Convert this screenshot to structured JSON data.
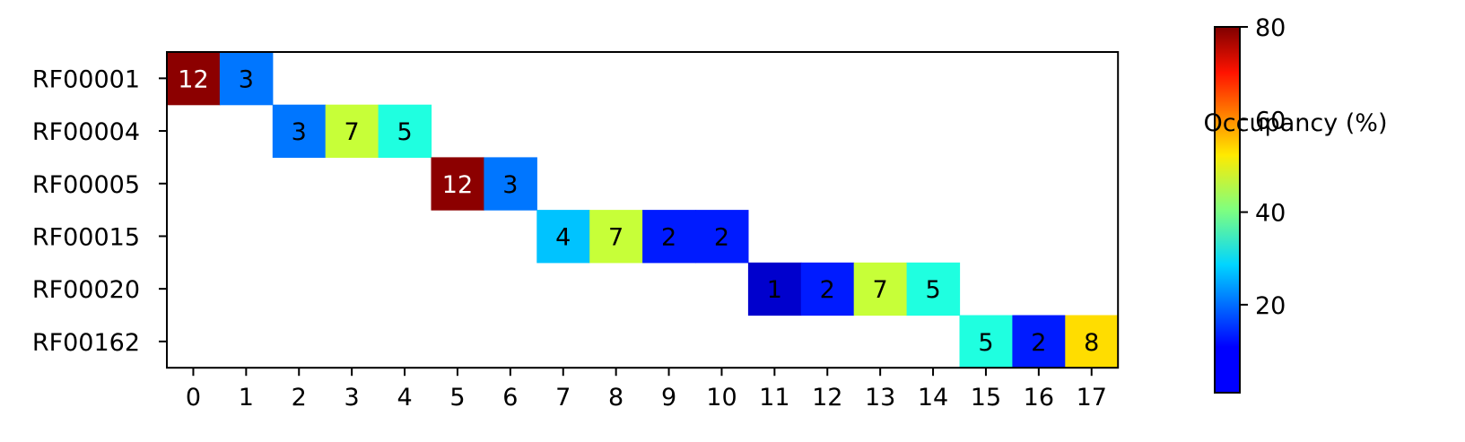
{
  "chart_data": {
    "type": "heatmap",
    "title": "",
    "xlabel": "",
    "ylabel": "",
    "rows": [
      "RF00001",
      "RF00004",
      "RF00005",
      "RF00015",
      "RF00020",
      "RF00162"
    ],
    "columns": [
      "0",
      "1",
      "2",
      "3",
      "4",
      "5",
      "6",
      "7",
      "8",
      "9",
      "10",
      "11",
      "12",
      "13",
      "14",
      "15",
      "16",
      "17"
    ],
    "cells": [
      {
        "row": 0,
        "col": 0,
        "label": "12",
        "value": 79
      },
      {
        "row": 0,
        "col": 1,
        "label": "3",
        "value": 20
      },
      {
        "row": 1,
        "col": 2,
        "label": "3",
        "value": 20
      },
      {
        "row": 1,
        "col": 3,
        "label": "7",
        "value": 46
      },
      {
        "row": 1,
        "col": 4,
        "label": "5",
        "value": 33
      },
      {
        "row": 2,
        "col": 5,
        "label": "12",
        "value": 79
      },
      {
        "row": 2,
        "col": 6,
        "label": "3",
        "value": 20
      },
      {
        "row": 3,
        "col": 7,
        "label": "4",
        "value": 26
      },
      {
        "row": 3,
        "col": 8,
        "label": "7",
        "value": 46
      },
      {
        "row": 3,
        "col": 9,
        "label": "2",
        "value": 13
      },
      {
        "row": 3,
        "col": 10,
        "label": "2",
        "value": 13
      },
      {
        "row": 4,
        "col": 11,
        "label": "1",
        "value": 7
      },
      {
        "row": 4,
        "col": 12,
        "label": "2",
        "value": 13
      },
      {
        "row": 4,
        "col": 13,
        "label": "7",
        "value": 46
      },
      {
        "row": 4,
        "col": 14,
        "label": "5",
        "value": 33
      },
      {
        "row": 5,
        "col": 15,
        "label": "5",
        "value": 33
      },
      {
        "row": 5,
        "col": 16,
        "label": "2",
        "value": 13
      },
      {
        "row": 5,
        "col": 17,
        "label": "8",
        "value": 53
      }
    ],
    "colorbar": {
      "label": "Occupancy (%)",
      "min": 1,
      "max": 80,
      "ticks": [
        20,
        40,
        60,
        80
      ],
      "colormap": "jet"
    },
    "grid": false
  }
}
